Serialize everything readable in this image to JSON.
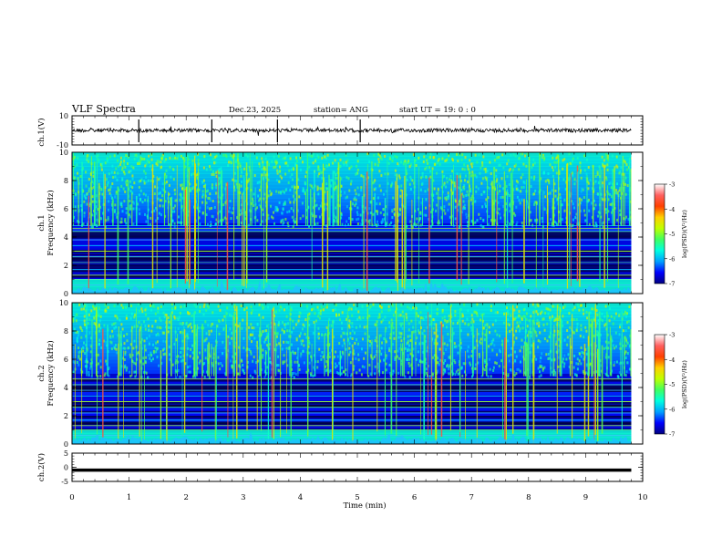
{
  "header": {
    "title": "VLF Spectra",
    "date": "Dec.23, 2025",
    "station": "station= ANG",
    "start": "start UT =  19: 0  : 0"
  },
  "chart_data": [
    {
      "type": "line",
      "name": "waveform-ch1",
      "ylabel": "ch.1(V)",
      "ylim": [
        -10,
        10
      ],
      "yticks": [
        "10",
        "-10"
      ],
      "description_level": 0
    },
    {
      "type": "heatmap",
      "name": "spectrogram-ch1",
      "ylabel_line1": "ch.1",
      "ylabel_line2": "Frequency (kHz)",
      "ylim": [
        0,
        10
      ],
      "yticks": [
        "10",
        "8",
        "6",
        "4",
        "2",
        "0"
      ],
      "colorbar": {
        "label": "log(PSD)(V²/Hz)",
        "range": [
          -7,
          -3
        ],
        "ticks": [
          "-3",
          "-4",
          "-5",
          "-6",
          "-7"
        ]
      },
      "bright_lines_khz": [
        0.6,
        1.0,
        1.3,
        1.7,
        2.2,
        2.6,
        3.0,
        3.4,
        3.8,
        4.4,
        4.6,
        4.8
      ]
    },
    {
      "type": "heatmap",
      "name": "spectrogram-ch2",
      "ylabel_line1": "ch.2",
      "ylabel_line2": "Frequency (kHz)",
      "ylim": [
        0,
        10
      ],
      "yticks": [
        "10",
        "8",
        "6",
        "4",
        "2",
        "0"
      ],
      "colorbar": {
        "label": "log(PSD)(V²/Hz)",
        "range": [
          -7,
          -3
        ],
        "ticks": [
          "-3",
          "-4",
          "-5",
          "-6",
          "-7"
        ]
      },
      "bright_lines_khz": [
        0.6,
        1.0,
        1.3,
        1.7,
        2.2,
        2.6,
        3.0,
        3.4,
        3.8,
        4.2,
        4.6
      ]
    },
    {
      "type": "line",
      "name": "waveform-ch2",
      "ylabel": "ch.2(V)",
      "ylim": [
        -5,
        5
      ],
      "yticks": [
        "5",
        "0",
        "-5"
      ],
      "level": -1.0
    }
  ],
  "xaxis": {
    "label": "Time (min)",
    "range": [
      0,
      10
    ],
    "ticks": [
      "0",
      "1",
      "2",
      "3",
      "4",
      "5",
      "6",
      "7",
      "8",
      "9",
      "10"
    ],
    "data_end": 9.8
  },
  "colors": {
    "colormap": [
      "#000080",
      "#0000ff",
      "#00a0ff",
      "#00ffe0",
      "#40ff60",
      "#c0ff00",
      "#ffd000",
      "#ff4000",
      "#ff6060",
      "#ffffff"
    ]
  }
}
